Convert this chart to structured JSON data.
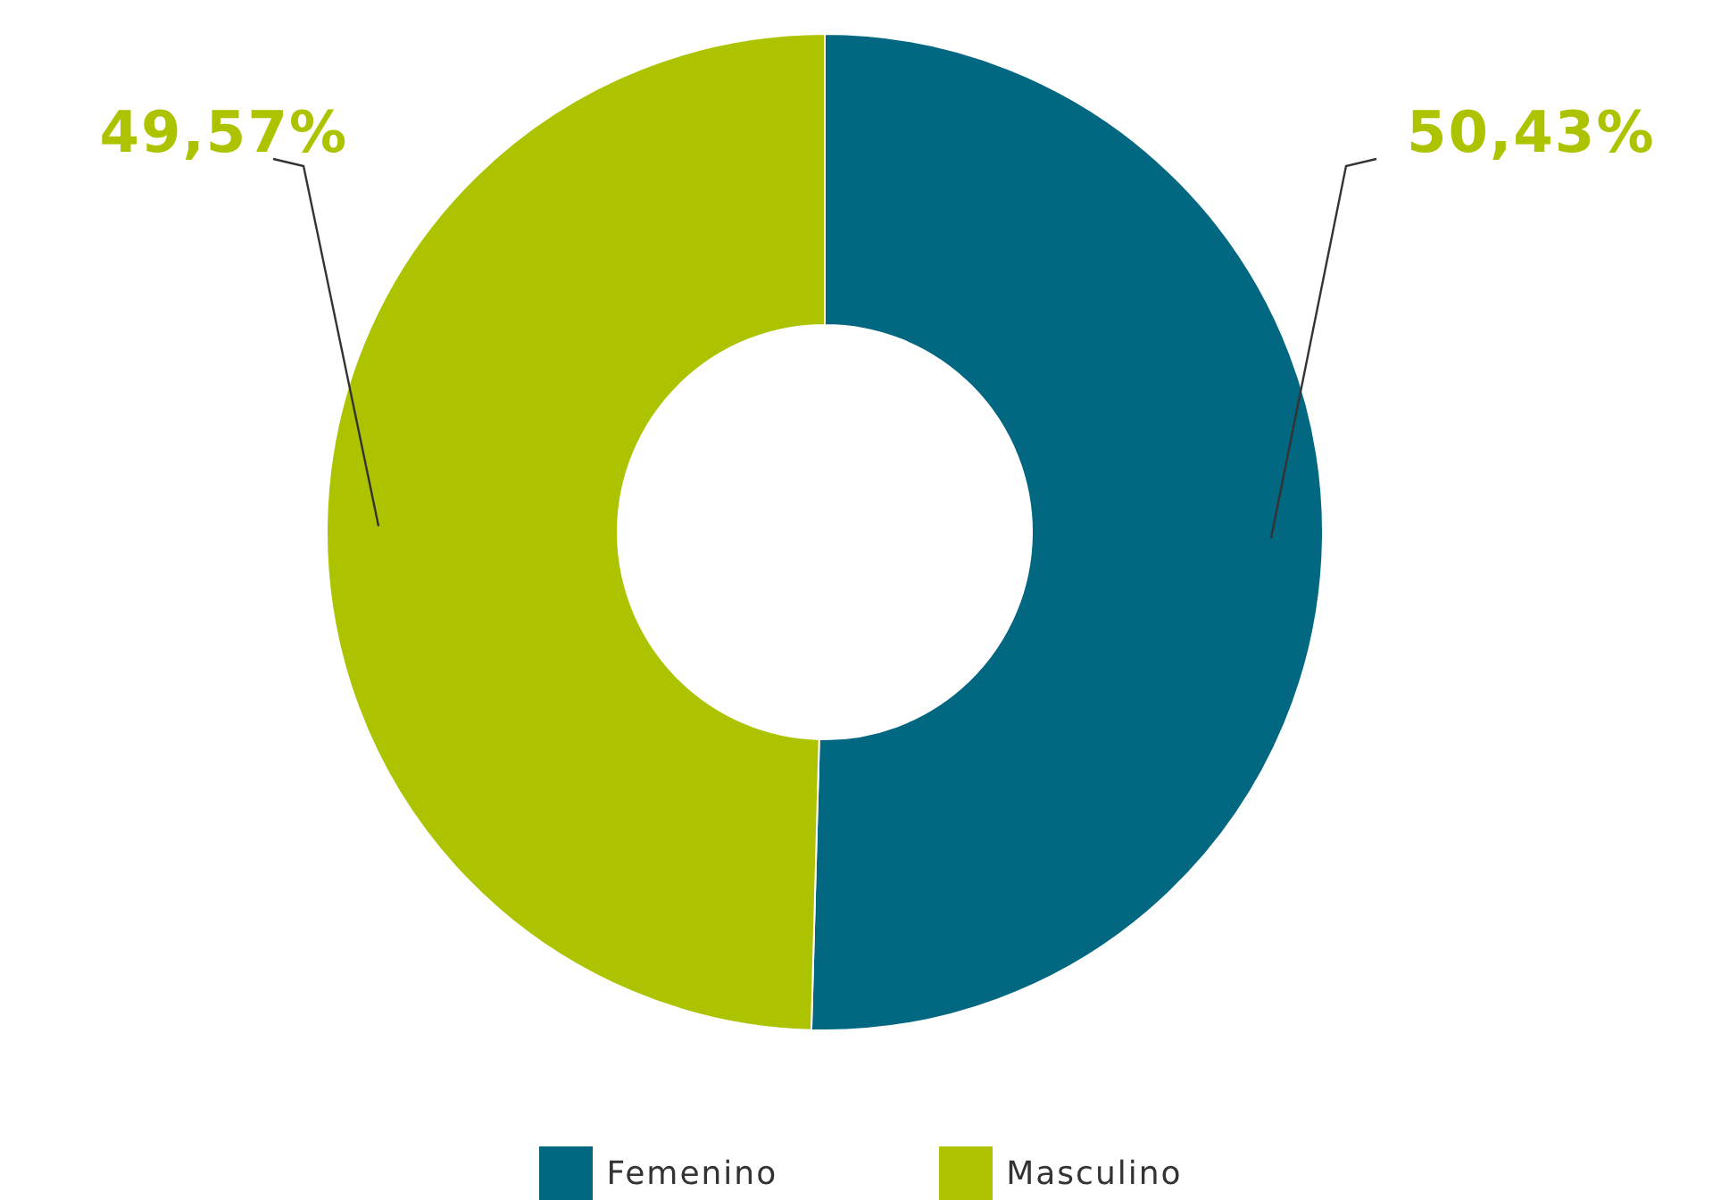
{
  "chart_data": {
    "type": "donut",
    "categories": [
      "Femenino",
      "Masculino"
    ],
    "values": [
      50.43,
      49.57
    ],
    "colors": [
      "#026780",
      "#adc300"
    ],
    "value_labels": [
      "50,43%",
      "49,57%"
    ],
    "legend": "bottom"
  }
}
